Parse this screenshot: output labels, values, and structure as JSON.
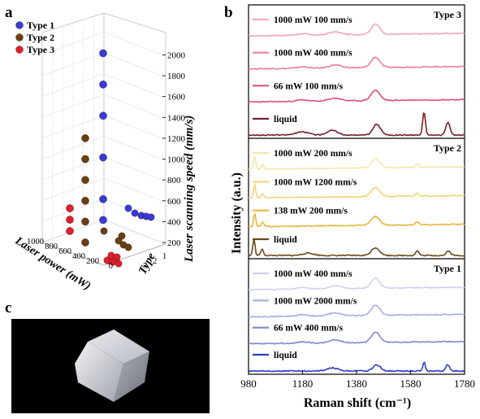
{
  "panels": {
    "a": "a",
    "b": "b",
    "c": "c"
  },
  "chart_data": [
    {
      "panel": "a",
      "type": "scatter",
      "projection": "3d",
      "legend": [
        {
          "label": "Type 1",
          "color": "#3a3ad6"
        },
        {
          "label": "Type 2",
          "color": "#6b3f12"
        },
        {
          "label": "Type 3",
          "color": "#e0202a"
        }
      ],
      "legend_position": "top-left",
      "axes": {
        "z": {
          "label": "Laser scanning speed (mm/s)",
          "ticks": [
            "200",
            "400",
            "600",
            "800",
            "1000",
            "1200",
            "1400",
            "1600",
            "1800",
            "2000"
          ],
          "range": [
            200,
            2100
          ]
        },
        "x": {
          "label": "Laser power (mW)",
          "ticks": [
            "1000",
            "800",
            "600",
            "400",
            "200",
            "0"
          ]
        },
        "y": {
          "label": "Type",
          "ticks": [
            "1",
            "2",
            "3"
          ]
        }
      },
      "series": [
        {
          "name": "Type 1",
          "points": [
            {
              "power": 1000,
              "speed": 400
            },
            {
              "power": 1000,
              "speed": 600
            },
            {
              "power": 1000,
              "speed": 1000
            },
            {
              "power": 1000,
              "speed": 1400
            },
            {
              "power": 1000,
              "speed": 1700
            },
            {
              "power": 1000,
              "speed": 2000
            }
          ]
        },
        {
          "name": "Type 2",
          "points": [
            {
              "power": 1000,
              "speed": 200
            },
            {
              "power": 1000,
              "speed": 400
            },
            {
              "power": 1000,
              "speed": 600
            },
            {
              "power": 1000,
              "speed": 800
            },
            {
              "power": 1000,
              "speed": 1000
            },
            {
              "power": 1000,
              "speed": 1200
            }
          ]
        },
        {
          "name": "Type 3",
          "points": [
            {
              "power": 1000,
              "speed": 100
            },
            {
              "power": 1000,
              "speed": 200
            },
            {
              "power": 1000,
              "speed": 300
            },
            {
              "power": 66,
              "speed": 100
            },
            {
              "power": 66,
              "speed": 200
            }
          ]
        }
      ]
    },
    {
      "panel": "b",
      "type": "line",
      "xlabel": "Raman shift (cm⁻¹)",
      "ylabel": "Intensity (a.u.)",
      "xlim": [
        980,
        1780
      ],
      "xticks": [
        "980",
        "1180",
        "1380",
        "1580",
        "1780"
      ],
      "groups": [
        {
          "title": "Type 3",
          "traces": [
            {
              "label": "1000 mW 100 mm/s",
              "color": "#f4a6c0"
            },
            {
              "label": "1000 mW 400 mm/s",
              "color": "#ec7ea2"
            },
            {
              "label": "66 mW 100 mm/s",
              "color": "#e0507c"
            },
            {
              "label": "liquid",
              "color": "#7a1f2a"
            }
          ]
        },
        {
          "title": "Type 2",
          "traces": [
            {
              "label": "1000 mW 200 mm/s",
              "color": "#f6e6a8"
            },
            {
              "label": "1000 mW 1200 mm/s",
              "color": "#f0d47a"
            },
            {
              "label": "138 mW 200 mm/s",
              "color": "#e7b63e"
            },
            {
              "label": "liquid",
              "color": "#6a4a1a"
            }
          ]
        },
        {
          "title": "Type 1",
          "traces": [
            {
              "label": "1000 mW 400 mm/s",
              "color": "#ccd2ee"
            },
            {
              "label": "1000 mW 2000 mm/s",
              "color": "#a6afe0"
            },
            {
              "label": "66 mW 400 mm/s",
              "color": "#7e8ad0"
            },
            {
              "label": "liquid",
              "color": "#2e3cc4"
            }
          ]
        }
      ]
    }
  ]
}
